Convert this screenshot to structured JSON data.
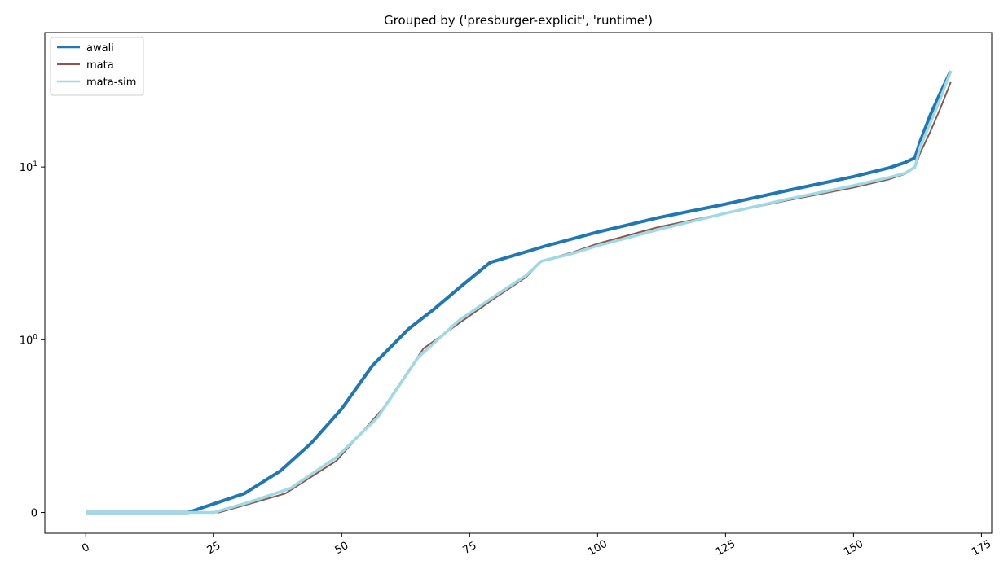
{
  "chart_data": {
    "type": "line",
    "title": "Grouped by ('presburger-explicit', 'runtime')",
    "xlabel": "",
    "ylabel": "",
    "xlim": [
      -8,
      177
    ],
    "x_ticks": [
      0,
      25,
      50,
      75,
      100,
      125,
      150,
      175
    ],
    "x_tick_labels": [
      "0",
      "25",
      "50",
      "75",
      "100",
      "125",
      "150",
      "175"
    ],
    "y_scale": "symlog",
    "ylim": [
      -0.12,
      60
    ],
    "y_ticks": [
      0,
      1,
      10
    ],
    "y_tick_labels": [
      "0",
      "10^0",
      "10^1"
    ],
    "grid": false,
    "legend_position": "upper left",
    "series": [
      {
        "name": "awali",
        "color": "#1f77b4",
        "line_width": 4,
        "x": [
          0,
          10,
          20,
          25,
          31,
          38,
          44,
          50,
          56,
          63,
          68,
          73,
          79,
          84,
          90,
          100,
          112,
          125,
          137,
          150,
          157,
          160,
          162,
          163,
          165,
          167,
          169
        ],
        "y": [
          0,
          0,
          0,
          0.05,
          0.11,
          0.24,
          0.4,
          0.6,
          0.85,
          1.15,
          1.5,
          2,
          2.8,
          3.1,
          3.5,
          4.2,
          5.1,
          6.1,
          7.3,
          8.8,
          9.9,
          10.6,
          11.3,
          14,
          20,
          27,
          36
        ]
      },
      {
        "name": "mata",
        "color": "#8c564b",
        "line_width": 2,
        "x": [
          0,
          10,
          20,
          26,
          32,
          39,
          49,
          58,
          66,
          73,
          80,
          86,
          89,
          95,
          100,
          112,
          125,
          137,
          150,
          157,
          160,
          162,
          163,
          165,
          167,
          169
        ],
        "y": [
          0,
          0,
          0,
          0,
          0.05,
          0.11,
          0.3,
          0.6,
          0.95,
          1.25,
          1.75,
          2.3,
          2.85,
          3.2,
          3.6,
          4.5,
          5.4,
          6.4,
          7.6,
          8.5,
          9.1,
          9.9,
          12,
          16,
          22,
          31
        ]
      },
      {
        "name": "mata-sim",
        "color": "#9edae5",
        "line_width": 3.5,
        "x": [
          0,
          10,
          20,
          25,
          32,
          40,
          49,
          57,
          65,
          73,
          80,
          86,
          89,
          95,
          100,
          112,
          125,
          137,
          150,
          157,
          160,
          162,
          163,
          165,
          167,
          169
        ],
        "y": [
          0,
          0,
          0,
          0,
          0.06,
          0.14,
          0.32,
          0.55,
          0.9,
          1.3,
          1.8,
          2.35,
          2.85,
          3.15,
          3.5,
          4.35,
          5.4,
          6.5,
          7.8,
          8.7,
          9.2,
          10,
          13,
          18,
          25,
          36
        ]
      }
    ]
  }
}
